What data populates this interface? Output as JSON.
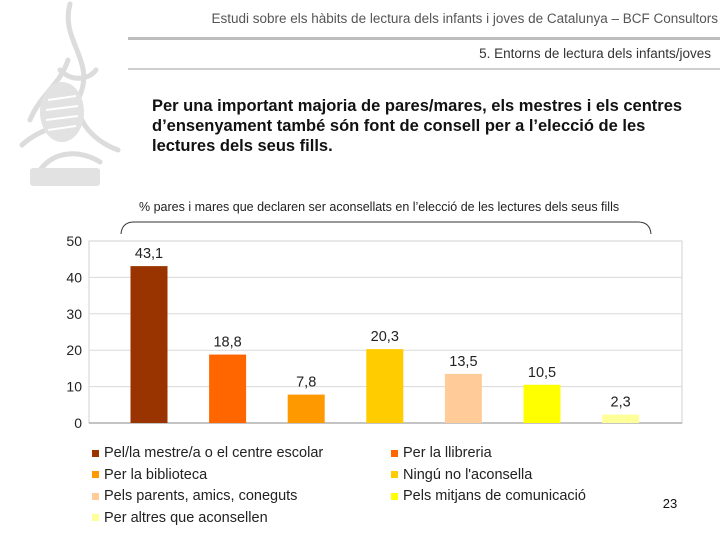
{
  "header": {
    "title": "Estudi sobre els hàbits de lectura dels infants i joves de Catalunya – BCF Consultors",
    "section": "5. Entorns de lectura dels infants/joves"
  },
  "headline": "Per una important majoria de pares/mares, els mestres i els centres d’ensenyament també són font de consell per a l’elecció de les lectures dels seus fills.",
  "page_number": "23",
  "chart_data": {
    "type": "bar",
    "title": "% pares i mares que declaren ser aconsellats en l’elecció de les lectures dels seus fills",
    "categories": [
      "Pel/la mestre/a o el centre escolar",
      "Per la biblioteca",
      "Pels parents, amics, coneguts",
      "Per altres que aconsellen",
      "Per la llibreria",
      "Ningú no l'aconsella",
      "Pels mitjans de comunicació"
    ],
    "series": [
      {
        "name": "Pel/la mestre/a o el centre escolar",
        "value": 43.1,
        "label": "43,1",
        "color": "#993300"
      },
      {
        "name": "Per la llibreria",
        "value": 18.8,
        "label": "18,8",
        "color": "#ff6600"
      },
      {
        "name": "Per la biblioteca",
        "value": 7.8,
        "label": "7,8",
        "color": "#ff9900"
      },
      {
        "name": "Ningú no l'aconsella",
        "value": 20.3,
        "label": "20,3",
        "color": "#ffcc00"
      },
      {
        "name": "Pels parents, amics, coneguts",
        "value": 13.5,
        "label": "13,5",
        "color": "#ffcc99"
      },
      {
        "name": "Pels mitjans de comunicació",
        "value": 10.5,
        "label": "10,5",
        "color": "#ffff00"
      },
      {
        "name": "Per altres que aconsellen",
        "value": 2.3,
        "label": "2,3",
        "color": "#ffff99"
      }
    ],
    "yticks": [
      "0",
      "10",
      "20",
      "30",
      "40",
      "50"
    ],
    "ylim": [
      0,
      50
    ],
    "grid": true,
    "legend": {
      "placement": "bottom",
      "items": [
        {
          "label": "Pel/la mestre/a o el centre escolar",
          "color": "#993300"
        },
        {
          "label": "Per la llibreria",
          "color": "#ff6600"
        },
        {
          "label": "Per la biblioteca",
          "color": "#ff9900"
        },
        {
          "label": "Ningú no l'aconsella",
          "color": "#ffcc00"
        },
        {
          "label": "Pels parents, amics, coneguts",
          "color": "#ffcc99"
        },
        {
          "label": "Pels mitjans de comunicació",
          "color": "#ffff00"
        },
        {
          "label": "Per altres que aconsellen",
          "color": "#ffff99"
        }
      ]
    }
  }
}
